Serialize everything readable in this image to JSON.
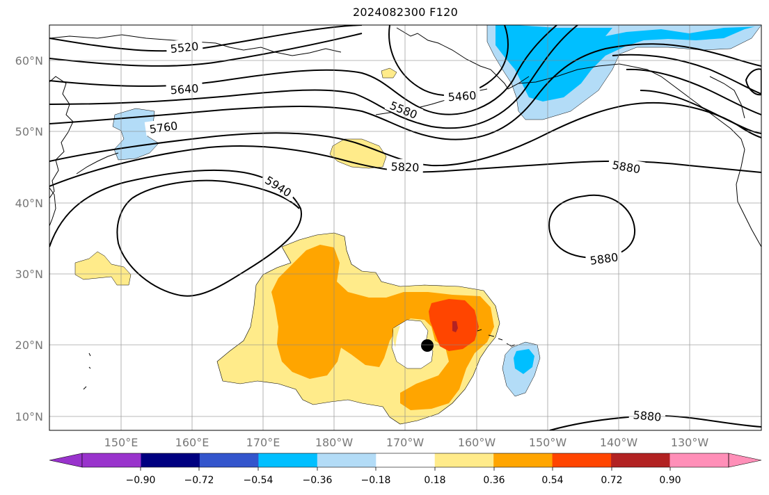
{
  "title": "2024082300 F120",
  "lat_labels": [
    "10°N",
    "20°N",
    "30°N",
    "40°N",
    "50°N",
    "60°N"
  ],
  "lon_labels": [
    "150°E",
    "160°E",
    "170°E",
    "180°W",
    "170°W",
    "160°W",
    "150°W",
    "140°W",
    "130°W"
  ],
  "contour_labels": [
    {
      "text": "5520",
      "angle": -6
    },
    {
      "text": "5640",
      "angle": -4
    },
    {
      "text": "5760",
      "angle": -8
    },
    {
      "text": "5940",
      "angle": 32
    },
    {
      "text": "5580",
      "angle": 22
    },
    {
      "text": "5460",
      "angle": -4
    },
    {
      "text": "5820",
      "angle": 2
    },
    {
      "text": "5880",
      "angle": 10
    },
    {
      "text": "5880",
      "angle": -8
    },
    {
      "text": "5880",
      "angle": 5
    }
  ],
  "colorbar": {
    "ticks": [
      "−0.90",
      "−0.72",
      "−0.54",
      "−0.36",
      "−0.18",
      "0.18",
      "0.36",
      "0.54",
      "0.72",
      "0.90"
    ],
    "colors": [
      "#9933cc",
      "#000080",
      "#3355cc",
      "#00bfff",
      "#b3dcf7",
      "#ffffff",
      "#ffeb8a",
      "#ffa500",
      "#ff4500",
      "#b22222",
      "#ff8fb8"
    ]
  },
  "shading_colors": {
    "pos1": "#ffeb8a",
    "pos2": "#ffa500",
    "pos3": "#ff4500",
    "pos4": "#b22222",
    "neg1": "#b3dcf7",
    "neg2": "#00bfff"
  },
  "marker": {
    "name": "storm-center",
    "lat": 20,
    "lon": -166
  }
}
